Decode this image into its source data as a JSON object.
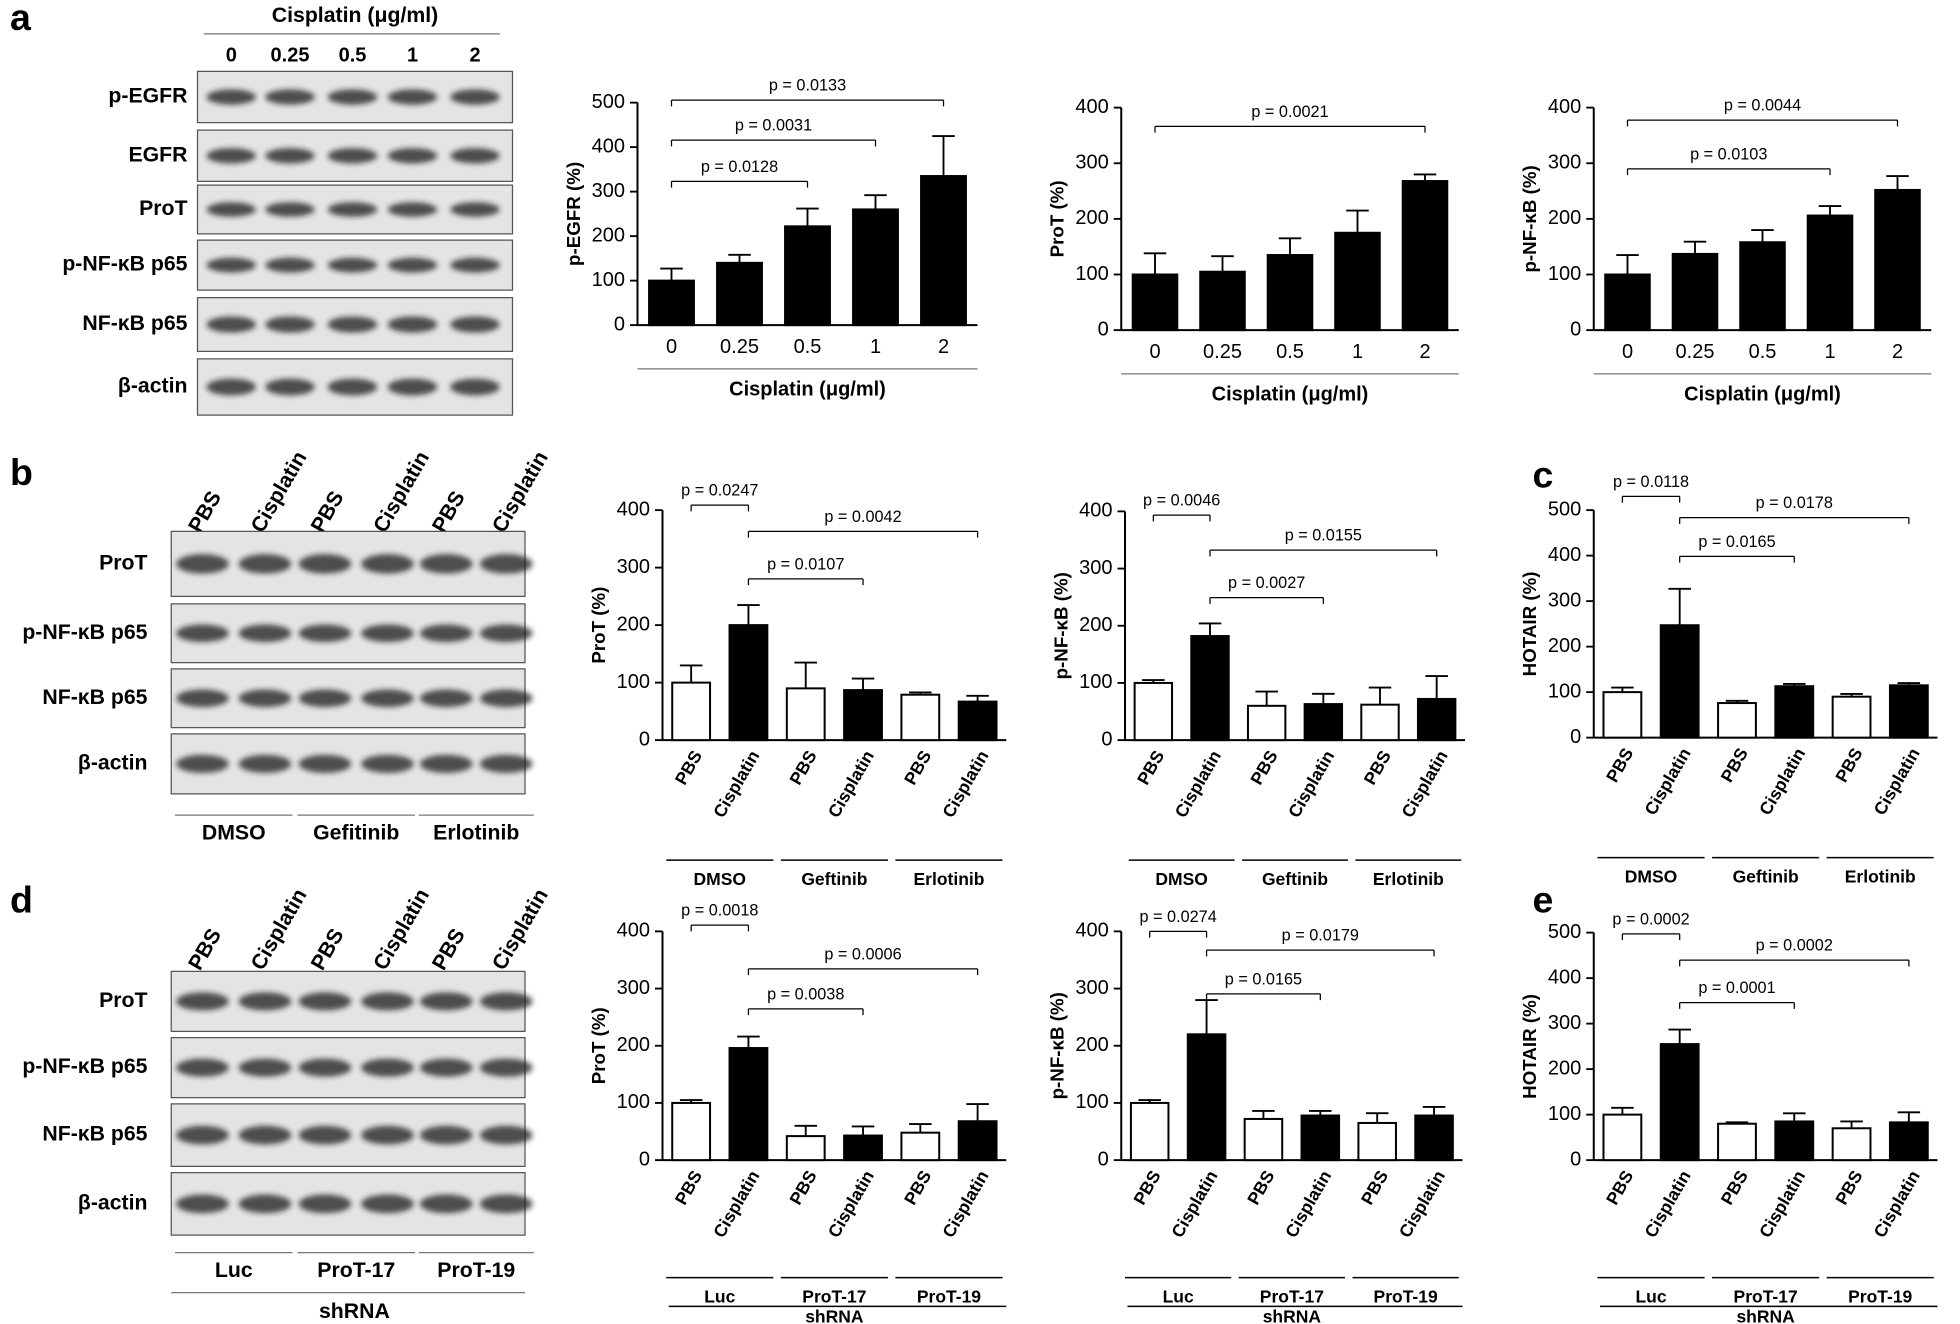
{
  "panels": [
    "a",
    "b",
    "c",
    "d",
    "e"
  ],
  "blots": [
    {
      "title": "Cisplatin  (μg/ml)",
      "lanes": [
        "0",
        "0.25",
        "0.5",
        "1",
        "2"
      ],
      "rows": [
        "p-EGFR",
        "EGFR",
        "ProT",
        "p-NF-κB p65",
        "NF-κB p65",
        "β-actin"
      ]
    },
    {
      "lanes": [
        "PBS",
        "Cisplatin",
        "PBS",
        "Cisplatin",
        "PBS",
        "Cisplatin"
      ],
      "rows": [
        "ProT",
        "p-NF-κB p65",
        "NF-κB p65",
        "β-actin"
      ],
      "groups": [
        "DMSO",
        "Gefitinib",
        "Erlotinib"
      ]
    },
    {
      "lanes": [
        "PBS",
        "Cisplatin",
        "PBS",
        "Cisplatin",
        "PBS",
        "Cisplatin"
      ],
      "rows": [
        "ProT",
        "p-NF-κB p65",
        "NF-κB p65",
        "β-actin"
      ],
      "groups": [
        "Luc",
        "ProT-17",
        "ProT-19"
      ],
      "group_title": "shRNA"
    }
  ],
  "chart_data": [
    {
      "type": "bar",
      "ylabel": "p-EGFR (%)",
      "xlabel": "Cisplatin  (μg/ml)",
      "categories": [
        "0",
        "0.25",
        "0.5",
        "1",
        "2"
      ],
      "values": [
        100,
        140,
        222,
        260,
        335
      ],
      "errors": [
        27,
        18,
        40,
        32,
        90
      ],
      "color": "#000000",
      "ylim": [
        0,
        500
      ],
      "yticks": [
        0,
        100,
        200,
        300,
        400,
        500
      ],
      "comparisons": [
        {
          "label": "p = 0.0133",
          "from": 0,
          "to": 4
        },
        {
          "label": "p = 0.0031",
          "from": 0,
          "to": 3
        },
        {
          "label": "p = 0.0128",
          "from": 0,
          "to": 2
        }
      ]
    },
    {
      "type": "bar",
      "ylabel": "ProT (%)",
      "xlabel": "Cisplatin  (μg/ml)",
      "categories": [
        "0",
        "0.25",
        "0.5",
        "1",
        "2"
      ],
      "values": [
        100,
        105,
        135,
        175,
        268
      ],
      "errors": [
        38,
        28,
        30,
        40,
        12
      ],
      "color": "#000000",
      "ylim": [
        0,
        400
      ],
      "yticks": [
        0,
        100,
        200,
        300,
        400
      ],
      "comparisons": [
        {
          "label": "p = 0.0021",
          "from": 0,
          "to": 4
        }
      ]
    },
    {
      "type": "bar",
      "ylabel": "p-NF-κB (%)",
      "xlabel": "Cisplatin  (μg/ml)",
      "categories": [
        "0",
        "0.25",
        "0.5",
        "1",
        "2"
      ],
      "values": [
        100,
        137,
        158,
        206,
        252
      ],
      "errors": [
        35,
        22,
        22,
        17,
        25
      ],
      "color": "#000000",
      "ylim": [
        0,
        400
      ],
      "yticks": [
        0,
        100,
        200,
        300,
        400
      ],
      "comparisons": [
        {
          "label": "p = 0.0044",
          "from": 0,
          "to": 4
        },
        {
          "label": "p = 0.0103",
          "from": 0,
          "to": 3
        }
      ]
    },
    {
      "type": "bar",
      "ylabel": "ProT (%)",
      "categories": [
        "PBS",
        "Cisplatin",
        "PBS",
        "Cisplatin",
        "PBS",
        "Cisplatin"
      ],
      "values": [
        100,
        200,
        90,
        87,
        79,
        67
      ],
      "errors": [
        30,
        35,
        45,
        20,
        4,
        10
      ],
      "colors": [
        "#ffffff",
        "#000000",
        "#ffffff",
        "#000000",
        "#ffffff",
        "#000000"
      ],
      "groups": [
        "DMSO",
        "Geftinib",
        "Erlotinib"
      ],
      "ylim": [
        0,
        400
      ],
      "yticks": [
        0,
        100,
        200,
        300,
        400
      ],
      "comparisons": [
        {
          "label": "p = 0.0247",
          "from": 0,
          "to": 1
        },
        {
          "label": "p = 0.0042",
          "from": 1,
          "to": 5
        },
        {
          "label": "p = 0.0107",
          "from": 1,
          "to": 3
        }
      ]
    },
    {
      "type": "bar",
      "ylabel": "p-NF-κB (%)",
      "categories": [
        "PBS",
        "Cisplatin",
        "PBS",
        "Cisplatin",
        "PBS",
        "Cisplatin"
      ],
      "values": [
        100,
        182,
        60,
        63,
        62,
        72
      ],
      "errors": [
        5,
        22,
        25,
        18,
        30,
        40
      ],
      "colors": [
        "#ffffff",
        "#000000",
        "#ffffff",
        "#000000",
        "#ffffff",
        "#000000"
      ],
      "groups": [
        "DMSO",
        "Geftinib",
        "Erlotinib"
      ],
      "ylim": [
        0,
        400
      ],
      "yticks": [
        0,
        100,
        200,
        300,
        400
      ],
      "comparisons": [
        {
          "label": "p = 0.0046",
          "from": 0,
          "to": 1
        },
        {
          "label": "p = 0.0155",
          "from": 1,
          "to": 5
        },
        {
          "label": "p = 0.0027",
          "from": 1,
          "to": 3
        }
      ]
    },
    {
      "type": "bar",
      "ylabel": "HOTAIR (%)",
      "categories": [
        "PBS",
        "Cisplatin",
        "PBS",
        "Cisplatin",
        "PBS",
        "Cisplatin"
      ],
      "values": [
        100,
        247,
        76,
        113,
        90,
        115
      ],
      "errors": [
        10,
        80,
        5,
        5,
        6,
        5
      ],
      "colors": [
        "#ffffff",
        "#000000",
        "#ffffff",
        "#000000",
        "#ffffff",
        "#000000"
      ],
      "groups": [
        "DMSO",
        "Geftinib",
        "Erlotinib"
      ],
      "ylim": [
        0,
        500
      ],
      "yticks": [
        0,
        100,
        200,
        300,
        400,
        500
      ],
      "comparisons": [
        {
          "label": "p = 0.0118",
          "from": 0,
          "to": 1
        },
        {
          "label": "p = 0.0178",
          "from": 1,
          "to": 5
        },
        {
          "label": "p = 0.0165",
          "from": 1,
          "to": 3
        }
      ]
    },
    {
      "type": "bar",
      "ylabel": "ProT (%)",
      "categories": [
        "PBS",
        "Cisplatin",
        "PBS",
        "Cisplatin",
        "PBS",
        "Cisplatin"
      ],
      "values": [
        100,
        196,
        42,
        43,
        48,
        68
      ],
      "errors": [
        5,
        20,
        18,
        16,
        15,
        30
      ],
      "colors": [
        "#ffffff",
        "#000000",
        "#ffffff",
        "#000000",
        "#ffffff",
        "#000000"
      ],
      "groups": [
        "Luc",
        "ProT-17",
        "ProT-19"
      ],
      "group_title": "shRNA",
      "ylim": [
        0,
        400
      ],
      "yticks": [
        0,
        100,
        200,
        300,
        400
      ],
      "comparisons": [
        {
          "label": "p = 0.0018",
          "from": 0,
          "to": 1
        },
        {
          "label": "p = 0.0006",
          "from": 1,
          "to": 5
        },
        {
          "label": "p = 0.0038",
          "from": 1,
          "to": 3
        }
      ]
    },
    {
      "type": "bar",
      "ylabel": "p-NF-κB (%)",
      "categories": [
        "PBS",
        "Cisplatin",
        "PBS",
        "Cisplatin",
        "PBS",
        "Cisplatin"
      ],
      "values": [
        100,
        220,
        72,
        78,
        65,
        78
      ],
      "errors": [
        5,
        60,
        14,
        8,
        17,
        15
      ],
      "colors": [
        "#ffffff",
        "#000000",
        "#ffffff",
        "#000000",
        "#ffffff",
        "#000000"
      ],
      "groups": [
        "Luc",
        "ProT-17",
        "ProT-19"
      ],
      "group_title": "shRNA",
      "ylim": [
        0,
        400
      ],
      "yticks": [
        0,
        100,
        200,
        300,
        400
      ],
      "comparisons": [
        {
          "label": "p = 0.0274",
          "from": 0,
          "to": 1
        },
        {
          "label": "p = 0.0179",
          "from": 1,
          "to": 5
        },
        {
          "label": "p = 0.0165",
          "from": 1,
          "to": 3
        }
      ]
    },
    {
      "type": "bar",
      "ylabel": "HOTAIR (%)",
      "categories": [
        "PBS",
        "Cisplatin",
        "PBS",
        "Cisplatin",
        "PBS",
        "Cisplatin"
      ],
      "values": [
        100,
        255,
        80,
        85,
        70,
        83
      ],
      "errors": [
        15,
        32,
        3,
        18,
        15,
        22
      ],
      "colors": [
        "#ffffff",
        "#000000",
        "#ffffff",
        "#000000",
        "#ffffff",
        "#000000"
      ],
      "groups": [
        "Luc",
        "ProT-17",
        "ProT-19"
      ],
      "group_title": "shRNA",
      "ylim": [
        0,
        500
      ],
      "yticks": [
        0,
        100,
        200,
        300,
        400,
        500
      ],
      "comparisons": [
        {
          "label": "p = 0.0002",
          "from": 0,
          "to": 1
        },
        {
          "label": "p = 0.0002",
          "from": 1,
          "to": 5
        },
        {
          "label": "p = 0.0001",
          "from": 1,
          "to": 3
        }
      ]
    }
  ]
}
